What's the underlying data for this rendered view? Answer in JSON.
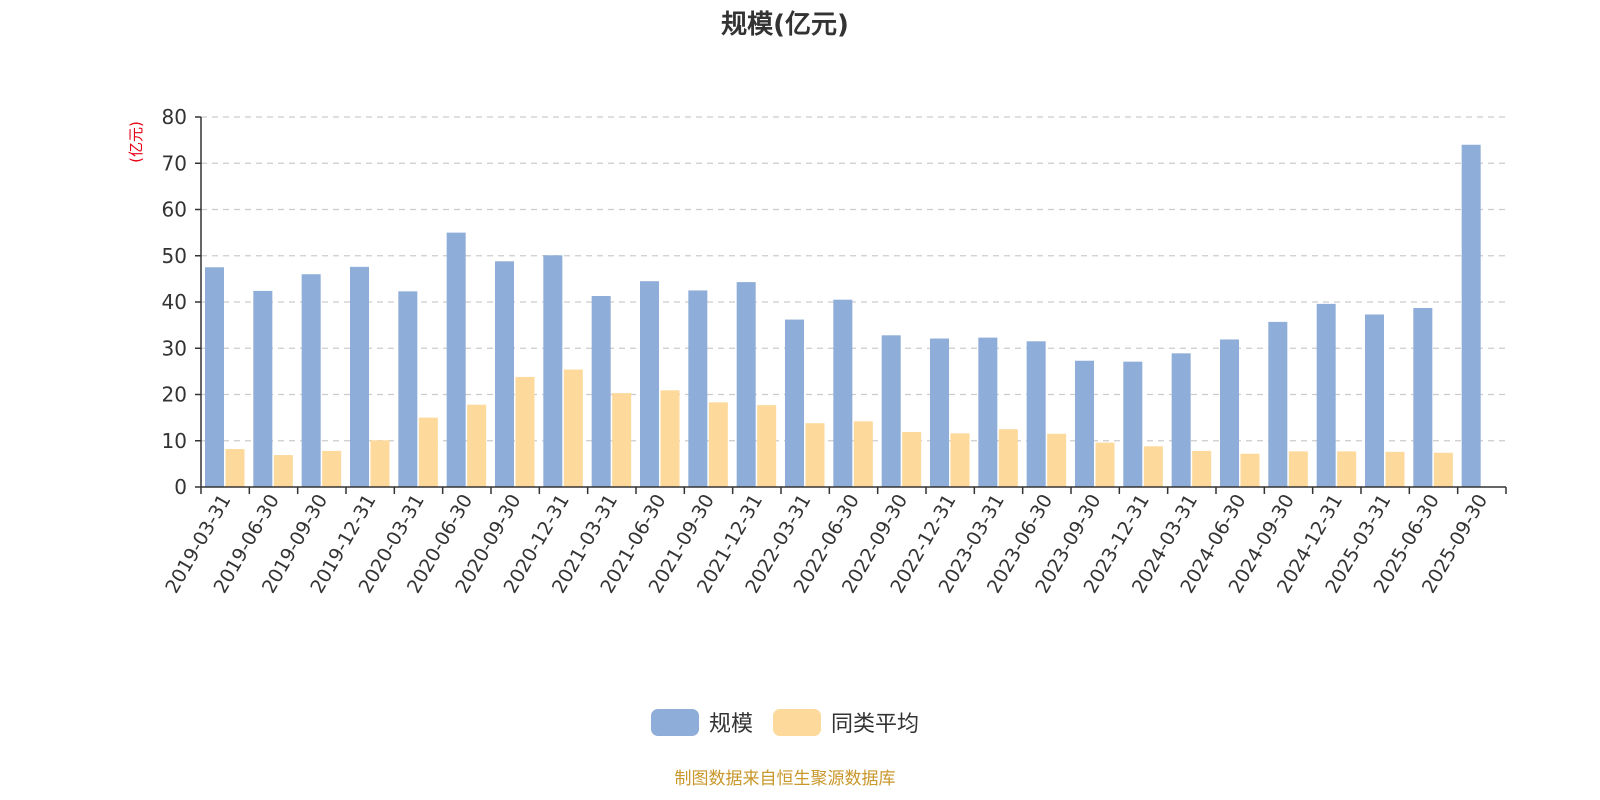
{
  "chart_data": {
    "type": "bar",
    "title": "规模(亿元)",
    "ylabel": "(亿元)",
    "ylim": [
      0,
      80
    ],
    "yticks": [
      0,
      10,
      20,
      30,
      40,
      50,
      60,
      70,
      80
    ],
    "grid": true,
    "legend_position": "bottom",
    "categories": [
      "2019-03-31",
      "2019-06-30",
      "2019-09-30",
      "2019-12-31",
      "2020-03-31",
      "2020-06-30",
      "2020-09-30",
      "2020-12-31",
      "2021-03-31",
      "2021-06-30",
      "2021-09-30",
      "2021-12-31",
      "2022-03-31",
      "2022-06-30",
      "2022-09-30",
      "2022-12-31",
      "2023-03-31",
      "2023-06-30",
      "2023-09-30",
      "2023-12-31",
      "2024-03-31",
      "2024-06-30",
      "2024-09-30",
      "2024-12-31",
      "2025-03-31",
      "2025-06-30",
      "2025-09-30"
    ],
    "series": [
      {
        "name": "规模",
        "color": "#8eadd9",
        "values": [
          47.5,
          42.4,
          46.0,
          47.6,
          42.3,
          55.0,
          48.8,
          50.1,
          41.3,
          44.5,
          42.5,
          44.3,
          36.2,
          40.5,
          32.8,
          32.1,
          32.3,
          31.5,
          27.3,
          27.1,
          28.9,
          31.9,
          35.7,
          39.6,
          37.3,
          38.7,
          74.0
        ]
      },
      {
        "name": "同类平均",
        "color": "#fdd99b",
        "values": [
          8.2,
          6.9,
          7.8,
          10.1,
          15.0,
          17.8,
          23.8,
          25.4,
          20.3,
          20.9,
          18.3,
          17.7,
          13.8,
          14.2,
          11.9,
          11.6,
          12.5,
          11.5,
          9.6,
          8.8,
          7.8,
          7.2,
          7.7,
          7.7,
          7.6,
          7.4,
          null
        ]
      }
    ]
  },
  "axis_colors": {
    "axis": "#333333",
    "grid": "#cccccc",
    "ylabel": "#e60012"
  },
  "legend": {
    "items": [
      {
        "label": "规模",
        "color": "#8eadd9"
      },
      {
        "label": "同类平均",
        "color": "#fdd99b"
      }
    ]
  },
  "footer": {
    "source": "制图数据来自恒生聚源数据库",
    "color": "#c9972b"
  }
}
